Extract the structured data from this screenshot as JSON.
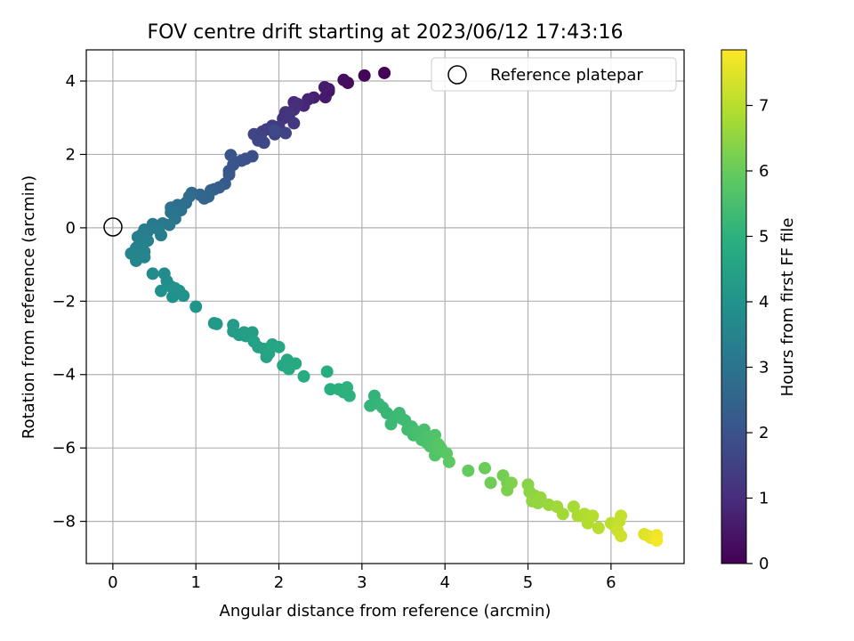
{
  "chart_data": {
    "type": "scatter",
    "title": "FOV centre drift starting at 2023/06/12 17:43:16",
    "xlabel": "Angular distance from reference (arcmin)",
    "ylabel": "Rotation from reference (arcmin)",
    "colorbar_label": "Hours from first FF file",
    "xlim": [
      -0.32,
      6.88
    ],
    "ylim": [
      -9.15,
      4.85
    ],
    "x_ticks": [
      0,
      1,
      2,
      3,
      4,
      5,
      6
    ],
    "y_ticks": [
      -8,
      -6,
      -4,
      -2,
      0,
      2,
      4
    ],
    "colorbar_ticks": [
      0,
      1,
      2,
      3,
      4,
      5,
      6,
      7
    ],
    "colorbar_range": [
      0,
      7.85
    ],
    "colormap": "viridis",
    "grid": true,
    "legend": {
      "placement": "top-right",
      "entries": [
        "Reference platepar"
      ]
    },
    "reference": {
      "x": 0,
      "y": 0
    },
    "points": [
      [
        3.27,
        4.22,
        0.05
      ],
      [
        3.03,
        4.15,
        0.12
      ],
      [
        2.83,
        3.95,
        0.22
      ],
      [
        2.78,
        4.03,
        0.28
      ],
      [
        2.6,
        3.72,
        0.45
      ],
      [
        2.56,
        3.56,
        0.55
      ],
      [
        2.6,
        3.78,
        0.5
      ],
      [
        2.55,
        3.83,
        0.58
      ],
      [
        2.42,
        3.55,
        0.7
      ],
      [
        2.35,
        3.5,
        0.78
      ],
      [
        2.3,
        3.33,
        0.85
      ],
      [
        2.18,
        3.42,
        0.92
      ],
      [
        2.22,
        3.38,
        1.0
      ],
      [
        2.18,
        3.22,
        1.05
      ],
      [
        2.08,
        3.15,
        1.1
      ],
      [
        2.05,
        2.98,
        1.15
      ],
      [
        2.12,
        3.05,
        1.18
      ],
      [
        2.18,
        2.85,
        1.22
      ],
      [
        2.0,
        2.75,
        1.3
      ],
      [
        1.92,
        2.78,
        1.35
      ],
      [
        1.85,
        2.68,
        1.42
      ],
      [
        1.8,
        2.62,
        1.48
      ],
      [
        1.78,
        2.45,
        1.5
      ],
      [
        1.95,
        2.55,
        1.55
      ],
      [
        2.08,
        2.58,
        1.6
      ],
      [
        1.7,
        2.55,
        1.62
      ],
      [
        1.75,
        2.38,
        1.65
      ],
      [
        1.82,
        2.32,
        1.7
      ],
      [
        1.95,
        2.65,
        1.72
      ],
      [
        1.68,
        1.95,
        1.85
      ],
      [
        1.6,
        1.88,
        1.9
      ],
      [
        1.55,
        1.83,
        1.95
      ],
      [
        1.42,
        1.98,
        2.0
      ],
      [
        1.45,
        1.72,
        2.05
      ],
      [
        1.4,
        1.55,
        2.1
      ],
      [
        1.4,
        1.45,
        2.15
      ],
      [
        1.35,
        1.2,
        2.25
      ],
      [
        1.28,
        1.1,
        2.32
      ],
      [
        1.22,
        1.05,
        2.4
      ],
      [
        1.18,
        1.02,
        2.45
      ],
      [
        1.15,
        0.85,
        2.55
      ],
      [
        1.1,
        0.8,
        2.6
      ],
      [
        1.05,
        0.9,
        2.62
      ],
      [
        0.95,
        0.95,
        2.7
      ],
      [
        0.92,
        0.85,
        2.75
      ],
      [
        0.88,
        0.68,
        2.82
      ],
      [
        0.78,
        0.62,
        2.88
      ],
      [
        0.82,
        0.48,
        2.92
      ],
      [
        0.7,
        0.55,
        2.95
      ],
      [
        0.7,
        0.42,
        3.0
      ],
      [
        0.75,
        0.25,
        3.05
      ],
      [
        0.68,
        0.08,
        3.1
      ],
      [
        0.6,
        0.12,
        3.12
      ],
      [
        0.52,
        0.05,
        3.15
      ],
      [
        0.48,
        0.1,
        3.18
      ],
      [
        0.42,
        -0.1,
        3.22
      ],
      [
        0.55,
        -0.05,
        3.25
      ],
      [
        0.58,
        -0.2,
        3.28
      ],
      [
        0.38,
        -0.05,
        3.3
      ],
      [
        0.35,
        -0.18,
        3.32
      ],
      [
        0.3,
        -0.25,
        3.35
      ],
      [
        0.42,
        -0.35,
        3.38
      ],
      [
        0.35,
        -0.45,
        3.4
      ],
      [
        0.28,
        -0.55,
        3.42
      ],
      [
        0.38,
        -0.65,
        3.45
      ],
      [
        0.3,
        -0.75,
        3.48
      ],
      [
        0.22,
        -0.7,
        3.5
      ],
      [
        0.38,
        -0.8,
        3.52
      ],
      [
        0.28,
        -0.9,
        3.55
      ],
      [
        0.48,
        -1.25,
        3.7
      ],
      [
        0.62,
        -1.25,
        3.75
      ],
      [
        0.65,
        -1.45,
        3.8
      ],
      [
        0.7,
        -1.6,
        3.85
      ],
      [
        0.58,
        -1.72,
        3.88
      ],
      [
        0.72,
        -1.88,
        3.92
      ],
      [
        0.85,
        -1.85,
        3.95
      ],
      [
        0.8,
        -1.72,
        3.98
      ],
      [
        0.75,
        -1.65,
        4.0
      ],
      [
        1.0,
        -2.15,
        4.05
      ],
      [
        1.22,
        -2.6,
        4.15
      ],
      [
        1.25,
        -2.62,
        4.18
      ],
      [
        1.45,
        -2.65,
        4.25
      ],
      [
        1.45,
        -2.82,
        4.3
      ],
      [
        1.52,
        -2.92,
        4.32
      ],
      [
        1.6,
        -2.95,
        4.35
      ],
      [
        1.58,
        -2.85,
        4.38
      ],
      [
        1.68,
        -2.85,
        4.4
      ],
      [
        1.7,
        -3.1,
        4.45
      ],
      [
        1.75,
        -3.25,
        4.48
      ],
      [
        1.82,
        -3.3,
        4.5
      ],
      [
        1.85,
        -3.52,
        4.55
      ],
      [
        1.88,
        -3.42,
        4.58
      ],
      [
        1.92,
        -3.18,
        4.6
      ],
      [
        2.0,
        -3.25,
        4.62
      ],
      [
        2.05,
        -3.75,
        4.68
      ],
      [
        2.1,
        -3.6,
        4.7
      ],
      [
        2.12,
        -3.85,
        4.75
      ],
      [
        2.2,
        -3.7,
        4.78
      ],
      [
        2.3,
        -4.05,
        4.82
      ],
      [
        2.58,
        -3.92,
        4.88
      ],
      [
        2.62,
        -4.4,
        4.92
      ],
      [
        2.72,
        -4.4,
        4.95
      ],
      [
        2.78,
        -4.48,
        4.98
      ],
      [
        2.82,
        -4.35,
        5.0
      ],
      [
        2.85,
        -4.58,
        5.02
      ],
      [
        3.15,
        -4.58,
        5.1
      ],
      [
        3.1,
        -4.85,
        5.12
      ],
      [
        3.2,
        -4.8,
        5.15
      ],
      [
        3.25,
        -4.9,
        5.18
      ],
      [
        3.3,
        -5.05,
        5.2
      ],
      [
        3.4,
        -5.15,
        5.25
      ],
      [
        3.35,
        -5.35,
        5.28
      ],
      [
        3.45,
        -5.05,
        5.3
      ],
      [
        3.48,
        -5.2,
        5.32
      ],
      [
        3.52,
        -5.25,
        5.35
      ],
      [
        3.55,
        -5.5,
        5.38
      ],
      [
        3.6,
        -5.42,
        5.4
      ],
      [
        3.62,
        -5.65,
        5.42
      ],
      [
        3.65,
        -5.55,
        5.45
      ],
      [
        3.7,
        -5.62,
        5.48
      ],
      [
        3.75,
        -5.5,
        5.5
      ],
      [
        3.72,
        -5.78,
        5.52
      ],
      [
        3.78,
        -5.85,
        5.55
      ],
      [
        3.8,
        -5.7,
        5.58
      ],
      [
        3.85,
        -5.8,
        5.6
      ],
      [
        3.88,
        -5.65,
        5.62
      ],
      [
        3.82,
        -5.95,
        5.65
      ],
      [
        3.9,
        -6.05,
        5.68
      ],
      [
        3.88,
        -6.2,
        5.7
      ],
      [
        3.95,
        -6.0,
        5.72
      ],
      [
        3.92,
        -5.9,
        5.75
      ],
      [
        3.98,
        -6.1,
        5.78
      ],
      [
        4.02,
        -6.15,
        5.8
      ],
      [
        4.05,
        -6.38,
        5.85
      ],
      [
        4.28,
        -6.62,
        5.95
      ],
      [
        4.48,
        -6.55,
        6.05
      ],
      [
        4.55,
        -6.95,
        6.1
      ],
      [
        4.7,
        -6.75,
        6.15
      ],
      [
        4.75,
        -6.95,
        6.2
      ],
      [
        4.75,
        -7.15,
        6.25
      ],
      [
        4.8,
        -6.95,
        6.3
      ],
      [
        5.0,
        -7.0,
        6.4
      ],
      [
        5.02,
        -7.2,
        6.45
      ],
      [
        5.08,
        -7.3,
        6.5
      ],
      [
        5.05,
        -7.45,
        6.52
      ],
      [
        5.12,
        -7.5,
        6.55
      ],
      [
        5.15,
        -7.35,
        6.58
      ],
      [
        5.25,
        -7.55,
        6.62
      ],
      [
        5.35,
        -7.6,
        6.68
      ],
      [
        5.42,
        -7.8,
        6.72
      ],
      [
        5.55,
        -7.6,
        6.78
      ],
      [
        5.6,
        -7.85,
        6.82
      ],
      [
        5.68,
        -7.8,
        6.88
      ],
      [
        5.72,
        -8.05,
        6.92
      ],
      [
        5.78,
        -7.85,
        6.95
      ],
      [
        5.85,
        -8.18,
        7.0
      ],
      [
        6.0,
        -8.05,
        7.05
      ],
      [
        6.05,
        -8.15,
        7.1
      ],
      [
        6.1,
        -8.0,
        7.15
      ],
      [
        6.12,
        -7.85,
        7.18
      ],
      [
        6.08,
        -8.25,
        7.22
      ],
      [
        6.12,
        -8.4,
        7.28
      ],
      [
        6.4,
        -8.35,
        7.45
      ],
      [
        6.45,
        -8.4,
        7.5
      ],
      [
        6.48,
        -8.45,
        7.55
      ],
      [
        6.55,
        -8.38,
        7.65
      ],
      [
        6.55,
        -8.52,
        7.75
      ]
    ]
  }
}
